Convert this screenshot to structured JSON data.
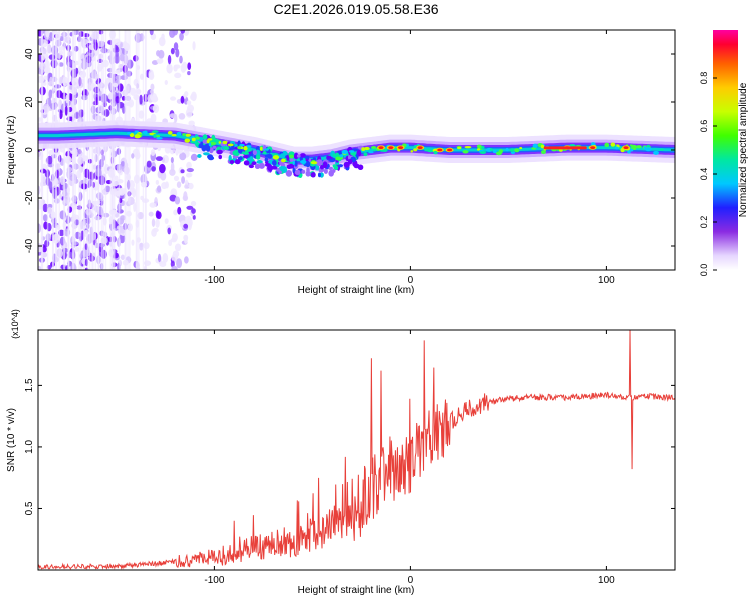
{
  "title": "C2E1.2026.019.05.58.E36",
  "chart_data": [
    {
      "type": "heatmap",
      "title": "C2E1.2026.019.05.58.E36",
      "xlabel": "Height of straight line (km)",
      "ylabel": "Frequency (Hz)",
      "xlim": [
        -190,
        135
      ],
      "ylim": [
        -50,
        50
      ],
      "x_ticks": [
        -100,
        0,
        100
      ],
      "y_ticks": [
        -40,
        -20,
        0,
        20,
        40
      ],
      "colorbar": {
        "label": "Normalized spectral amplitude",
        "range": [
          0,
          1
        ],
        "ticks": [
          0.0,
          0.2,
          0.4,
          0.6,
          0.8
        ]
      },
      "ridge": {
        "x": [
          -180,
          -150,
          -120,
          -100,
          -80,
          -60,
          -50,
          -40,
          -30,
          -20,
          -10,
          0,
          20,
          50,
          80,
          100,
          135
        ],
        "y": [
          6,
          7,
          6,
          3,
          0,
          -4,
          -4,
          -3,
          -1,
          0,
          1,
          1,
          0,
          0,
          1,
          1,
          0
        ]
      },
      "hotspots": [
        {
          "x": -15,
          "y": 1
        },
        {
          "x": -10,
          "y": 1
        },
        {
          "x": -5,
          "y": 1
        },
        {
          "x": 5,
          "y": 1
        },
        {
          "x": 15,
          "y": 0
        },
        {
          "x": 20,
          "y": 0
        },
        {
          "x": 80,
          "y": 1
        },
        {
          "x": 93,
          "y": 1
        },
        {
          "x": 110,
          "y": 1
        }
      ]
    },
    {
      "type": "line",
      "xlabel": "Height of straight line (km)",
      "ylabel": "SNR (10 * v/v)",
      "y_scale": "(x10^4)",
      "xlim": [
        -190,
        135
      ],
      "ylim": [
        0,
        1.95
      ],
      "x_ticks": [
        -100,
        0,
        100
      ],
      "y_ticks": [
        0.5,
        1.0,
        1.5
      ],
      "line_color": "#e8403a",
      "envelope": {
        "x": [
          -190,
          -150,
          -130,
          -110,
          -100,
          -90,
          -80,
          -70,
          -60,
          -50,
          -40,
          -30,
          -20,
          -15,
          -10,
          0,
          10,
          20,
          30,
          40,
          50,
          60,
          80,
          100,
          112,
          120,
          135
        ],
        "y": [
          0.02,
          0.03,
          0.05,
          0.08,
          0.1,
          0.12,
          0.17,
          0.2,
          0.22,
          0.27,
          0.35,
          0.45,
          0.6,
          0.75,
          0.78,
          0.85,
          1.05,
          1.2,
          1.3,
          1.36,
          1.39,
          1.4,
          1.4,
          1.42,
          1.4,
          1.41,
          1.4
        ]
      },
      "spikes": [
        {
          "x": -20,
          "y": 1.72
        },
        {
          "x": -15,
          "y": 1.62
        },
        {
          "x": 112,
          "y": 1.95
        },
        {
          "x": 113,
          "y": 0.82
        }
      ]
    }
  ]
}
